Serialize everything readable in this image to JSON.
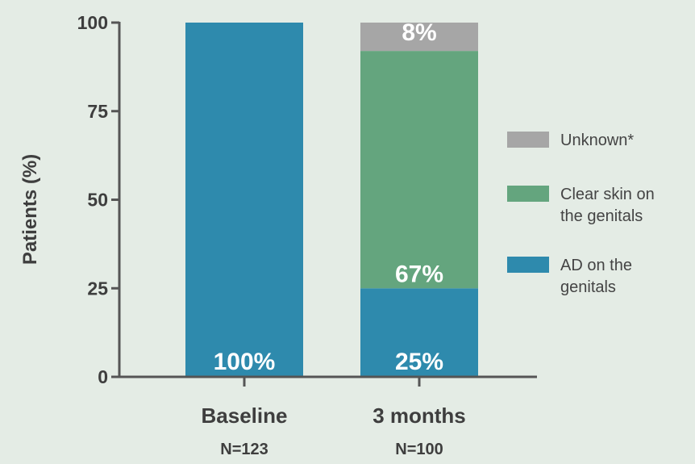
{
  "chart_data": {
    "type": "bar",
    "stacked": true,
    "ylabel": "Patients (%)",
    "xlabel": "",
    "ylim": [
      0,
      100
    ],
    "yticks": [
      0,
      25,
      50,
      75,
      100
    ],
    "categories": [
      "Baseline",
      "3 months"
    ],
    "category_n": [
      "N=123",
      "N=100"
    ],
    "series": [
      {
        "name": "AD on the genitals",
        "values": [
          100,
          25
        ],
        "labels": [
          "100%",
          "25%"
        ],
        "color": "#2e8aad"
      },
      {
        "name": "Clear skin on the genitals",
        "values": [
          0,
          67
        ],
        "labels": [
          "",
          "67%"
        ],
        "color": "#64a57e"
      },
      {
        "name": "Unknown*",
        "values": [
          0,
          8
        ],
        "labels": [
          "",
          "8%"
        ],
        "color": "#a6a6a6"
      }
    ],
    "legend": {
      "placement": "right",
      "order": [
        2,
        1,
        0
      ],
      "entries": [
        {
          "lines": [
            "Unknown*"
          ],
          "color": "#a6a6a6"
        },
        {
          "lines": [
            "Clear skin on",
            "the genitals"
          ],
          "color": "#64a57e"
        },
        {
          "lines": [
            "AD on the",
            "genitals"
          ],
          "color": "#2e8aad"
        }
      ]
    },
    "background": "#e4ece5"
  }
}
